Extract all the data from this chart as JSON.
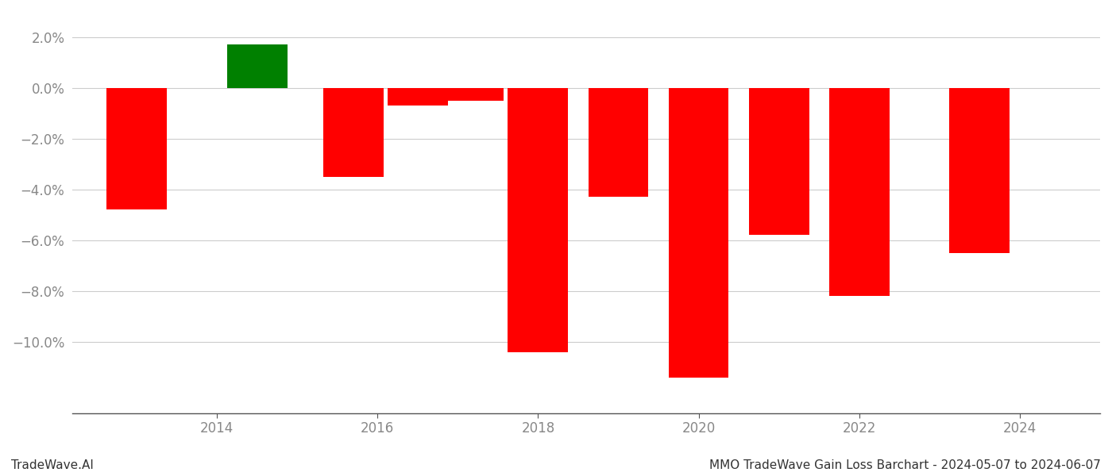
{
  "years": [
    2013.5,
    2014.5,
    2015.5,
    2016.5,
    2017.0,
    2018.0,
    2018.8,
    2019.8,
    2020.8,
    2021.8,
    2022.8,
    2023.5
  ],
  "values": [
    -0.048,
    0.017,
    -0.035,
    -0.007,
    -0.005,
    -0.104,
    -0.043,
    -0.114,
    -0.058,
    -0.082,
    -0.065,
    0
  ],
  "colors": [
    "red",
    "green",
    "red",
    "red",
    "red",
    "red",
    "red",
    "red",
    "red",
    "red",
    "red",
    "red"
  ],
  "bar_width": 0.7,
  "xlim": [
    2012.5,
    2025.0
  ],
  "ylim": [
    -0.128,
    0.028
  ],
  "yticks": [
    -0.1,
    -0.08,
    -0.06,
    -0.04,
    -0.02,
    0.0,
    0.02
  ],
  "xticks": [
    2014,
    2016,
    2018,
    2020,
    2022,
    2024
  ],
  "footer_left": "TradeWave.AI",
  "footer_right": "MMO TradeWave Gain Loss Barchart - 2024-05-07 to 2024-06-07",
  "grid_color": "#cccccc",
  "background_color": "#ffffff",
  "tick_color": "#888888",
  "footer_font_size": 11,
  "tick_font_size": 12
}
